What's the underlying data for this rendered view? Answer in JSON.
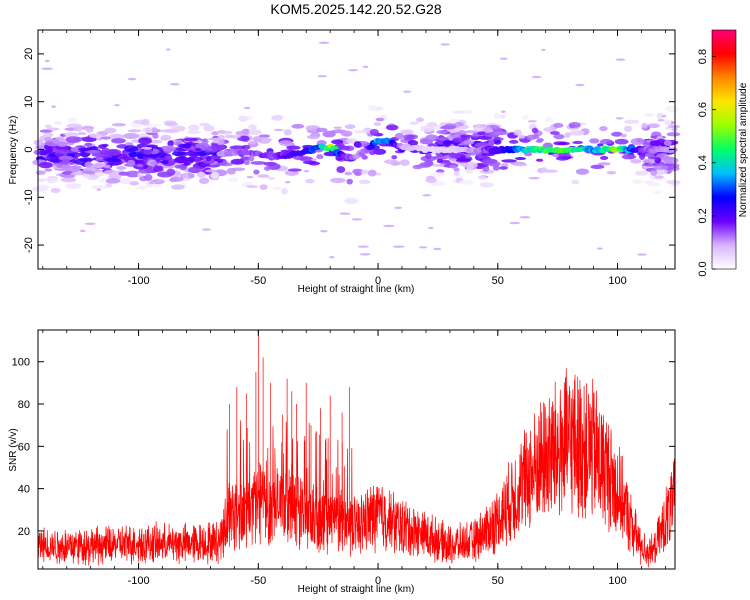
{
  "title": "KOM5.2025.142.20.52.G28",
  "chart_data": [
    {
      "type": "heatmap",
      "xlabel": "Height of straight line (km)",
      "ylabel": "Frequency (Hz)",
      "xlim": [
        -142,
        124
      ],
      "ylim": [
        -25,
        25
      ],
      "xticks": [
        -100,
        -50,
        0,
        50,
        100
      ],
      "yticks": [
        -20,
        -10,
        0,
        10,
        20
      ],
      "colorbar": {
        "label": "Normalized spectral amplitude",
        "range": [
          0.0,
          0.9
        ],
        "ticks": [
          0.0,
          0.2,
          0.4,
          0.6,
          0.8
        ],
        "colors": [
          "#ffffff",
          "#d8b4fe",
          "#6a00ff",
          "#0000ff",
          "#00bfff",
          "#00ff66",
          "#9aff00",
          "#ffe600",
          "#ff8800",
          "#ff0000",
          "#ff0077"
        ]
      },
      "ridge": {
        "description_free": true,
        "x": [
          -65,
          -55,
          -45,
          -35,
          -25,
          -20,
          -15,
          -12,
          -8,
          -4,
          0,
          5,
          10,
          20,
          30,
          40,
          50,
          60,
          70,
          80,
          90,
          100,
          110,
          120
        ],
        "freq": [
          -1,
          -0.5,
          -1.5,
          -1,
          0.5,
          0.5,
          -1,
          -2,
          -1,
          0,
          2,
          1.5,
          0.5,
          0,
          0,
          0,
          0,
          0,
          0,
          0,
          0,
          0,
          0,
          0
        ],
        "amplitude": [
          0.1,
          0.15,
          0.15,
          0.2,
          0.3,
          0.55,
          0.2,
          0.15,
          0.1,
          0.15,
          0.35,
          0.3,
          0.1,
          0.05,
          0.05,
          0.1,
          0.2,
          0.35,
          0.45,
          0.45,
          0.35,
          0.5,
          0.15,
          0.1
        ]
      }
    },
    {
      "type": "line",
      "xlabel": "Height of straight line (km)",
      "ylabel": "SNR (v/v)",
      "xlim": [
        -142,
        124
      ],
      "ylim": [
        2,
        115
      ],
      "xticks": [
        -100,
        -50,
        0,
        50,
        100
      ],
      "yticks": [
        20,
        40,
        60,
        80,
        100
      ],
      "series": [
        {
          "color": "#ff0000",
          "envelope_x": [
            -142,
            -120,
            -100,
            -80,
            -66,
            -62,
            -55,
            -50,
            -45,
            -40,
            -35,
            -30,
            -25,
            -20,
            -15,
            -10,
            -5,
            0,
            10,
            20,
            30,
            40,
            50,
            60,
            70,
            80,
            90,
            100,
            105,
            110,
            115,
            120,
            124
          ],
          "envelope_mean": [
            13,
            13,
            14,
            14,
            15,
            30,
            28,
            35,
            30,
            32,
            30,
            28,
            22,
            26,
            24,
            22,
            25,
            28,
            22,
            18,
            13,
            15,
            25,
            42,
            55,
            62,
            58,
            40,
            25,
            12,
            10,
            25,
            35
          ],
          "spikes_x": [
            -62,
            -59,
            -55,
            -51,
            -50,
            -48,
            -45,
            -40,
            -38,
            -36,
            -34,
            -30,
            -28,
            -24,
            -20,
            -15,
            -12
          ],
          "spikes_y": [
            80,
            88,
            85,
            95,
            115,
            102,
            90,
            75,
            92,
            86,
            80,
            90,
            70,
            78,
            84,
            76,
            88
          ]
        }
      ]
    }
  ]
}
